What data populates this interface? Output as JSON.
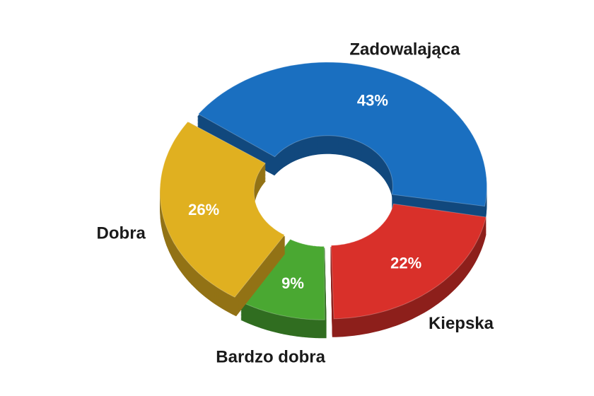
{
  "chart_data": {
    "type": "donut",
    "categories": [
      "Zadowalająca",
      "Kiepska",
      "Bardzo dobra",
      "Dobra"
    ],
    "values": [
      43,
      22,
      9,
      26
    ],
    "value_labels": [
      "43%",
      "22%",
      "9%",
      "26%"
    ],
    "colors": [
      "#1a6fc0",
      "#d9302a",
      "#4aa832",
      "#e0b020"
    ]
  }
}
